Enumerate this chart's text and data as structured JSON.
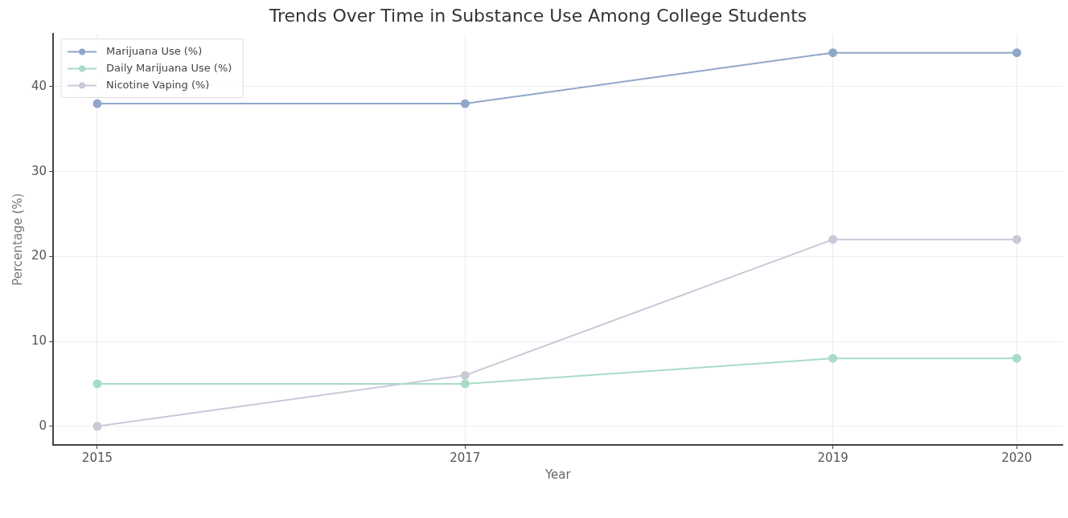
{
  "chart_data": {
    "type": "line",
    "title": "Trends Over Time in Substance Use Among College Students",
    "xlabel": "Year",
    "ylabel": "Percentage (%)",
    "x": [
      2015,
      2017,
      2019,
      2020
    ],
    "series": [
      {
        "name": "Marijuana Use (%)",
        "color": "#8fa8c8",
        "values": [
          38,
          38,
          44,
          44
        ]
      },
      {
        "name": "Daily Marijuana Use (%)",
        "color": "#a8dcc8",
        "values": [
          5,
          5,
          8,
          8
        ]
      },
      {
        "name": "Nicotine Vaping (%)",
        "color": "#c8cad8",
        "values": [
          0,
          6,
          22,
          22
        ]
      }
    ],
    "xlim": [
      2014.76,
      2020.25
    ],
    "xticks": [
      2015,
      2017,
      2019,
      2020
    ],
    "ylim": [
      -2.2,
      46.2
    ],
    "yticks": [
      0,
      10,
      20,
      30,
      40
    ],
    "grid": true,
    "legend": "top left",
    "marker": "circle",
    "line_style": "solid"
  }
}
